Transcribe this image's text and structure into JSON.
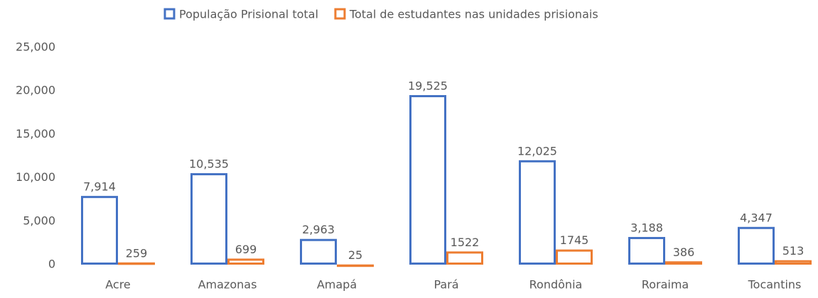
{
  "chart_data": {
    "type": "bar",
    "categories": [
      "Acre",
      "Amazonas",
      "Amapá",
      "Pará",
      "Rondônia",
      "Roraima",
      "Tocantins"
    ],
    "series": [
      {
        "name": "População Prisional total",
        "color": "#4472c4",
        "values": [
          7914,
          10535,
          2963,
          19525,
          12025,
          3188,
          4347
        ],
        "value_labels": [
          "7,914",
          "10,535",
          "2,963",
          "19,525",
          "12,025",
          "3,188",
          "4,347"
        ]
      },
      {
        "name": "Total de estudantes nas unidades prisionais",
        "color": "#ed7d31",
        "values": [
          259,
          699,
          25,
          1522,
          1745,
          386,
          513
        ]
      }
    ],
    "ylim": [
      0,
      25000
    ],
    "yticks": [
      0,
      {
        "value": 5000,
        "label": "5,000"
      },
      {
        "value": 10000,
        "label": "10,000"
      },
      {
        "value": 15000,
        "label": "15,000"
      },
      {
        "value": 20000,
        "label": "20,000"
      },
      {
        "value": 25000,
        "label": "25,000"
      }
    ],
    "grid": false
  }
}
